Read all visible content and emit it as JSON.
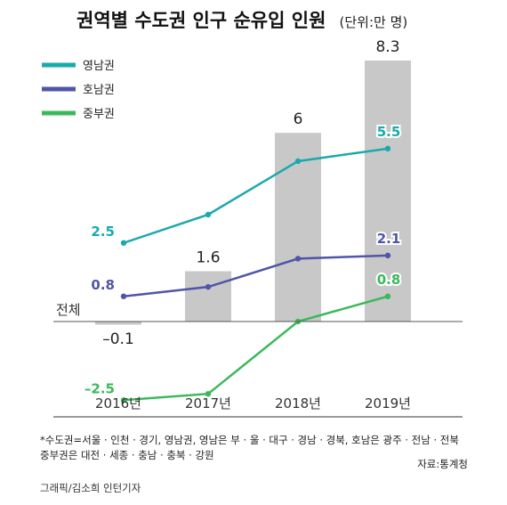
{
  "chart_data": {
    "type": "bar",
    "title": "권역별 수도권 인구 순유입 인원",
    "unit": "(단위:만 명)",
    "categories": [
      "2016년",
      "2017년",
      "2018년",
      "2019년"
    ],
    "bar_series": {
      "name": "전체",
      "values": [
        -0.1,
        1.6,
        6,
        8.3
      ],
      "value_labels": [
        "–0.1",
        "1.6",
        "6",
        "8.3"
      ],
      "color": "#c8c8c8"
    },
    "line_series": [
      {
        "name": "영남권",
        "color": "#1aa9ad",
        "values": [
          2.5,
          3.4,
          5.1,
          5.5
        ],
        "labels": {
          "0": "2.5",
          "3": "5.5"
        }
      },
      {
        "name": "호남권",
        "color": "#5055a8",
        "values": [
          0.8,
          1.1,
          2.0,
          2.1
        ],
        "labels": {
          "0": "0.8",
          "3": "2.1"
        }
      },
      {
        "name": "중부권",
        "color": "#3cb85c",
        "values": [
          -2.5,
          -2.3,
          0.0,
          0.8
        ],
        "labels": {
          "0": "–2.5",
          "3": "0.8"
        }
      }
    ],
    "ylim": [
      -3,
      8.8
    ],
    "baseline_label": "전체",
    "legend_position": "top-left",
    "grid": false
  },
  "note": {
    "line1": "*수도권=서울 · 인천 · 경기, 영남권, 영남은 부 · 울 · 대구 · 경남 · 경북, 호남은 광주 · 전남 · 전북",
    "line2": "중부권은 대전 · 세종 · 충남 · 충북 · 강원"
  },
  "source": "자료:통계청",
  "credit": "그래픽/김소희 인턴기자"
}
